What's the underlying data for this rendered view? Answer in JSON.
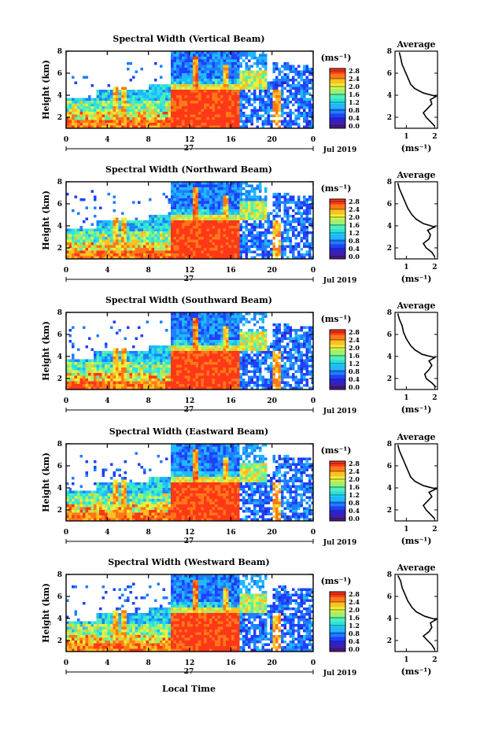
{
  "figure": {
    "xlabel": "Local Time",
    "date_label": "Jul 2019",
    "day_label": "27",
    "ylabel": "Height (km)",
    "colorbar_unit": "(ms⁻¹)",
    "avg_title": "Average",
    "avg_xlabel": "(ms⁻¹)"
  },
  "colors": {
    "colormap": [
      "#4b1d8c",
      "#3020c8",
      "#2040ff",
      "#1f7fff",
      "#20b8ff",
      "#28e0e8",
      "#50f0b0",
      "#a0f070",
      "#e8f040",
      "#ffc020",
      "#ff7818",
      "#ff3818"
    ]
  },
  "chart_data": [
    {
      "type": "heatmap",
      "title": "Spectral Width (Vertical Beam)",
      "x_ticks": [
        "0",
        "4",
        "8",
        "12",
        "16",
        "20",
        "0"
      ],
      "y_ticks": [
        "2",
        "4",
        "6",
        "8"
      ],
      "colorbar_ticks": [
        "0.0",
        "0.4",
        "0.8",
        "1.2",
        "1.6",
        "2.0",
        "2.4",
        "2.8"
      ],
      "xlim": [
        0,
        24
      ],
      "ylim": [
        1,
        8
      ],
      "avg_x_ticks": [
        "1",
        "2"
      ],
      "avg_y_ticks": [
        "2",
        "4",
        "6",
        "8"
      ],
      "average_profile": {
        "height_km": [
          1.2,
          1.6,
          2.0,
          2.4,
          2.8,
          3.2,
          3.6,
          3.9,
          4.2,
          4.6,
          5.0,
          5.6,
          6.2,
          6.8,
          7.4,
          7.9
        ],
        "width_ms": [
          2.0,
          1.85,
          1.7,
          1.6,
          1.75,
          1.9,
          1.85,
          2.05,
          1.6,
          1.3,
          1.15,
          1.05,
          0.95,
          0.85,
          0.8,
          0.75
        ]
      }
    },
    {
      "type": "heatmap",
      "title": "Spectral Width (Northward Beam)",
      "x_ticks": [
        "0",
        "4",
        "8",
        "12",
        "16",
        "20",
        "0"
      ],
      "y_ticks": [
        "2",
        "4",
        "6",
        "8"
      ],
      "colorbar_ticks": [
        "0.0",
        "0.4",
        "0.8",
        "1.2",
        "1.6",
        "2.0",
        "2.4",
        "2.8"
      ],
      "xlim": [
        0,
        24
      ],
      "ylim": [
        1,
        8
      ],
      "avg_x_ticks": [
        "1",
        "2"
      ],
      "avg_y_ticks": [
        "2",
        "4",
        "6",
        "8"
      ],
      "average_profile": {
        "height_km": [
          1.2,
          1.6,
          2.0,
          2.4,
          2.8,
          3.2,
          3.6,
          3.9,
          4.2,
          4.6,
          5.0,
          5.6,
          6.2,
          6.8,
          7.4,
          7.9
        ],
        "width_ms": [
          2.0,
          1.9,
          1.7,
          1.6,
          1.8,
          1.85,
          1.75,
          2.0,
          1.6,
          1.35,
          1.2,
          1.05,
          0.95,
          0.85,
          0.75,
          0.7
        ]
      }
    },
    {
      "type": "heatmap",
      "title": "Spectral Width (Southward Beam)",
      "x_ticks": [
        "0",
        "4",
        "8",
        "12",
        "16",
        "20",
        "0"
      ],
      "y_ticks": [
        "2",
        "4",
        "6",
        "8"
      ],
      "colorbar_ticks": [
        "0.0",
        "0.4",
        "0.8",
        "1.2",
        "1.6",
        "2.0",
        "2.4",
        "2.8"
      ],
      "xlim": [
        0,
        24
      ],
      "ylim": [
        1,
        8
      ],
      "avg_x_ticks": [
        "1",
        "2"
      ],
      "avg_y_ticks": [
        "2",
        "4",
        "6",
        "8"
      ],
      "average_profile": {
        "height_km": [
          1.2,
          1.6,
          2.0,
          2.4,
          2.8,
          3.2,
          3.6,
          3.9,
          4.2,
          4.6,
          5.0,
          5.6,
          6.2,
          6.8,
          7.4,
          7.9
        ],
        "width_ms": [
          2.05,
          1.9,
          1.7,
          1.65,
          1.8,
          1.9,
          1.8,
          2.0,
          1.55,
          1.3,
          1.15,
          1.0,
          0.9,
          0.85,
          0.75,
          0.7
        ]
      }
    },
    {
      "type": "heatmap",
      "title": "Spectral Width (Eastward Beam)",
      "x_ticks": [
        "0",
        "4",
        "8",
        "12",
        "16",
        "20",
        "0"
      ],
      "y_ticks": [
        "2",
        "4",
        "6",
        "8"
      ],
      "colorbar_ticks": [
        "0.0",
        "0.4",
        "0.8",
        "1.2",
        "1.6",
        "2.0",
        "2.4",
        "2.8"
      ],
      "xlim": [
        0,
        24
      ],
      "ylim": [
        1,
        8
      ],
      "avg_x_ticks": [
        "1",
        "2"
      ],
      "avg_y_ticks": [
        "2",
        "4",
        "6",
        "8"
      ],
      "average_profile": {
        "height_km": [
          1.2,
          1.6,
          2.0,
          2.4,
          2.8,
          3.2,
          3.6,
          3.9,
          4.2,
          4.6,
          5.0,
          5.6,
          6.2,
          6.8,
          7.4,
          7.9
        ],
        "width_ms": [
          2.0,
          1.85,
          1.7,
          1.6,
          1.75,
          1.9,
          1.8,
          2.05,
          1.6,
          1.3,
          1.15,
          1.05,
          0.95,
          0.85,
          0.75,
          0.7
        ]
      }
    },
    {
      "type": "heatmap",
      "title": "Spectral Width (Westward Beam)",
      "x_ticks": [
        "0",
        "4",
        "8",
        "12",
        "16",
        "20",
        "0"
      ],
      "y_ticks": [
        "2",
        "4",
        "6",
        "8"
      ],
      "colorbar_ticks": [
        "0.0",
        "0.4",
        "0.8",
        "1.2",
        "1.6",
        "2.0",
        "2.4",
        "2.8"
      ],
      "xlim": [
        0,
        24
      ],
      "ylim": [
        1,
        8
      ],
      "avg_x_ticks": [
        "1",
        "2"
      ],
      "avg_y_ticks": [
        "2",
        "4",
        "6",
        "8"
      ],
      "average_profile": {
        "height_km": [
          1.2,
          1.6,
          2.0,
          2.4,
          2.8,
          3.2,
          3.6,
          3.9,
          4.2,
          4.6,
          5.0,
          5.6,
          6.2,
          6.8,
          7.4,
          7.9
        ],
        "width_ms": [
          2.0,
          1.9,
          1.75,
          1.6,
          1.8,
          1.9,
          1.85,
          2.05,
          1.65,
          1.35,
          1.2,
          1.05,
          0.95,
          0.85,
          0.8,
          0.7
        ]
      }
    }
  ]
}
